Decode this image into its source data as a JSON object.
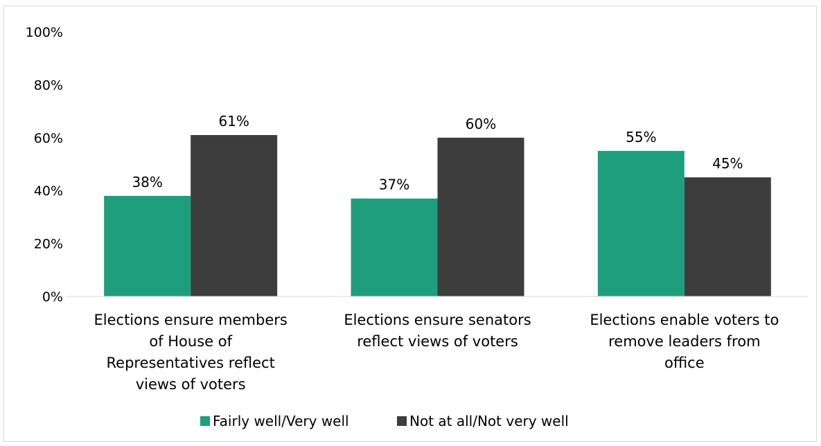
{
  "chart_data": {
    "type": "bar",
    "title": "",
    "xlabel": "",
    "ylabel": "",
    "ylim": [
      0,
      100
    ],
    "yticks": [
      0,
      20,
      40,
      60,
      80,
      100
    ],
    "ytick_labels": [
      "0%",
      "20%",
      "40%",
      "60%",
      "80%",
      "100%"
    ],
    "grid": false,
    "legend_position": "bottom",
    "categories": [
      [
        "Elections ensure members",
        "of House of",
        "Representatives reflect",
        "views of voters"
      ],
      [
        "Elections ensure senators",
        "reflect views of voters"
      ],
      [
        "Elections enable voters to",
        "remove leaders from",
        "office"
      ]
    ],
    "series": [
      {
        "name": "Fairly well/Very well",
        "color": "#1e9e7d",
        "values": [
          38,
          37,
          55
        ],
        "labels": [
          "38%",
          "37%",
          "55%"
        ]
      },
      {
        "name": "Not at all/Not very well",
        "color": "#3d3d3d",
        "values": [
          61,
          60,
          45
        ],
        "labels": [
          "61%",
          "60%",
          "45%"
        ]
      }
    ]
  }
}
